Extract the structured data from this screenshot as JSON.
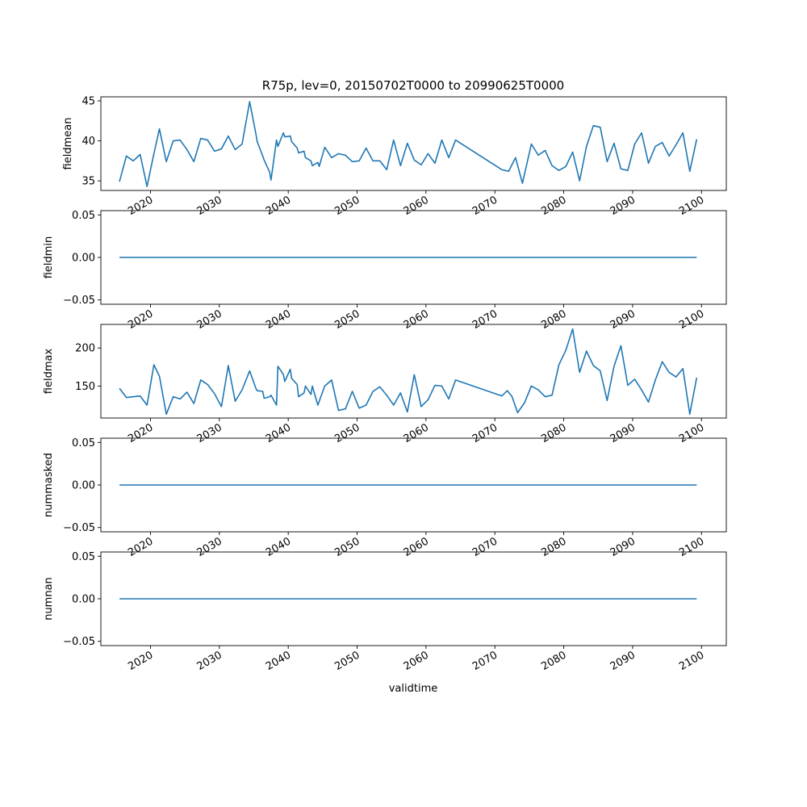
{
  "chart_data": {
    "type": "line",
    "title": "R75p, lev=0, 20150702T0000 to 20990625T0000",
    "xlabel": "validtime",
    "x_tick_labels": [
      "2020",
      "2030",
      "2040",
      "2050",
      "2060",
      "2070",
      "2080",
      "2090",
      "2100"
    ],
    "x_tick_values": [
      2020,
      2030,
      2040,
      2050,
      2060,
      2070,
      2080,
      2090,
      2100
    ],
    "xlim": [
      2012.8,
      2103.6
    ],
    "line_color": "#1f77b4",
    "legend": "none",
    "grid": false,
    "panels": [
      {
        "ylabel": "fieldmean",
        "ylim": [
          33.8,
          45.5
        ],
        "y_ticks": [
          35,
          40,
          45
        ],
        "y_tick_labels": [
          "35",
          "40",
          "45"
        ],
        "x": [
          2015.5,
          2016.5,
          2017.5,
          2018.5,
          2019.5,
          2020.5,
          2021.3,
          2022.3,
          2023.3,
          2024.3,
          2025.3,
          2026.3,
          2027.3,
          2028.3,
          2029.3,
          2030.3,
          2031.3,
          2032.3,
          2033.3,
          2034.4,
          2035.3,
          2035.5,
          2036.3,
          2036.5,
          2037.3,
          2037.5,
          2038.3,
          2038.5,
          2039.3,
          2039.5,
          2040.3,
          2040.5,
          2041.3,
          2041.5,
          2042.3,
          2042.5,
          2043.3,
          2043.5,
          2044.3,
          2044.5,
          2045.3,
          2046.3,
          2047.3,
          2048.3,
          2049.3,
          2050.3,
          2051.3,
          2052.3,
          2053.3,
          2054.3,
          2055.3,
          2056.3,
          2057.3,
          2058.3,
          2059.3,
          2060.3,
          2061.3,
          2062.3,
          2063.3,
          2064.3,
          2071.0,
          2072.0,
          2073.0,
          2074.0,
          2075.3,
          2076.3,
          2077.3,
          2078.3,
          2079.3,
          2080.3,
          2081.3,
          2082.3,
          2083.3,
          2084.3,
          2085.3,
          2086.3,
          2087.3,
          2088.3,
          2089.3,
          2090.3,
          2091.3,
          2092.3,
          2093.3,
          2094.3,
          2095.3,
          2096.3,
          2097.3,
          2098.3,
          2099.3
        ],
        "values": [
          34.9,
          38.1,
          37.5,
          38.3,
          34.3,
          38.4,
          41.5,
          37.4,
          40.0,
          40.1,
          38.9,
          37.4,
          40.3,
          40.1,
          38.7,
          39.0,
          40.6,
          38.9,
          39.6,
          44.9,
          40.9,
          39.9,
          38.1,
          37.6,
          36.1,
          35.1,
          40.1,
          39.3,
          41.0,
          40.5,
          40.6,
          39.9,
          39.1,
          38.5,
          38.7,
          37.9,
          37.5,
          36.9,
          37.3,
          36.8,
          39.2,
          37.9,
          38.4,
          38.2,
          37.4,
          37.5,
          39.1,
          37.5,
          37.5,
          36.4,
          40.1,
          36.9,
          39.7,
          37.6,
          37.0,
          38.4,
          37.2,
          40.1,
          37.9,
          40.1,
          36.4,
          36.2,
          37.9,
          34.7,
          39.6,
          38.2,
          38.8,
          36.9,
          36.3,
          36.8,
          38.6,
          35.0,
          39.3,
          41.9,
          41.7,
          37.4,
          39.7,
          36.5,
          36.3,
          39.6,
          41.0,
          37.2,
          39.3,
          39.8,
          38.1,
          39.5,
          41.0,
          36.2,
          40.2
        ]
      },
      {
        "ylabel": "fieldmin",
        "ylim": [
          -0.055,
          0.055
        ],
        "y_ticks": [
          -0.05,
          0.0,
          0.05
        ],
        "y_tick_labels": [
          "−0.05",
          "0.00",
          "0.05"
        ],
        "x": [
          2015.5,
          2099.3
        ],
        "values": [
          0,
          0
        ]
      },
      {
        "ylabel": "fieldmax",
        "ylim": [
          108,
          231
        ],
        "y_ticks": [
          150,
          200
        ],
        "y_tick_labels": [
          "150",
          "200"
        ],
        "x": [
          2015.5,
          2016.5,
          2018.5,
          2019.5,
          2020.5,
          2021.3,
          2022.3,
          2023.3,
          2024.3,
          2025.3,
          2026.3,
          2027.3,
          2028.3,
          2029.3,
          2030.3,
          2031.3,
          2032.3,
          2033.3,
          2034.4,
          2035.3,
          2035.5,
          2036.3,
          2036.5,
          2037.3,
          2037.5,
          2038.3,
          2038.5,
          2039.3,
          2039.5,
          2040.3,
          2040.5,
          2041.3,
          2041.5,
          2042.3,
          2042.5,
          2043.3,
          2043.5,
          2044.3,
          2045.3,
          2046.3,
          2047.3,
          2048.3,
          2049.3,
          2050.3,
          2051.3,
          2052.3,
          2053.3,
          2054.3,
          2055.3,
          2056.3,
          2057.3,
          2058.3,
          2059.3,
          2060.3,
          2061.3,
          2062.3,
          2063.3,
          2064.3,
          2071.0,
          2071.8,
          2072.5,
          2073.3,
          2074.3,
          2075.3,
          2076.3,
          2077.3,
          2078.3,
          2079.3,
          2080.3,
          2081.3,
          2082.3,
          2083.3,
          2084.3,
          2085.3,
          2086.3,
          2087.3,
          2088.3,
          2089.3,
          2090.3,
          2091.3,
          2092.3,
          2093.3,
          2094.3,
          2095.3,
          2096.3,
          2097.3,
          2098.3,
          2099.3
        ],
        "values": [
          147,
          135,
          137,
          125,
          178,
          163,
          113,
          136,
          133,
          142,
          127,
          158,
          152,
          140,
          123,
          177,
          130,
          145,
          170,
          147,
          144,
          143,
          134,
          136,
          138,
          125,
          176,
          165,
          156,
          172,
          160,
          152,
          136,
          141,
          150,
          139,
          150,
          125,
          150,
          158,
          118,
          120,
          143,
          121,
          125,
          143,
          149,
          138,
          125,
          141,
          116,
          165,
          123,
          132,
          151,
          150,
          133,
          158,
          137,
          144,
          136,
          115,
          128,
          150,
          145,
          136,
          138,
          178,
          197,
          225,
          168,
          196,
          177,
          170,
          131,
          176,
          203,
          151,
          159,
          145,
          129,
          158,
          182,
          168,
          162,
          173,
          113,
          161
        ]
      },
      {
        "ylabel": "nummasked",
        "ylim": [
          -0.055,
          0.055
        ],
        "y_ticks": [
          -0.05,
          0.0,
          0.05
        ],
        "y_tick_labels": [
          "−0.05",
          "0.00",
          "0.05"
        ],
        "x": [
          2015.5,
          2099.3
        ],
        "values": [
          0,
          0
        ]
      },
      {
        "ylabel": "numnan",
        "ylim": [
          -0.055,
          0.055
        ],
        "y_ticks": [
          -0.05,
          0.0,
          0.05
        ],
        "y_tick_labels": [
          "−0.05",
          "0.00",
          "0.05"
        ],
        "x": [
          2015.5,
          2099.3
        ],
        "values": [
          0,
          0
        ]
      }
    ]
  }
}
